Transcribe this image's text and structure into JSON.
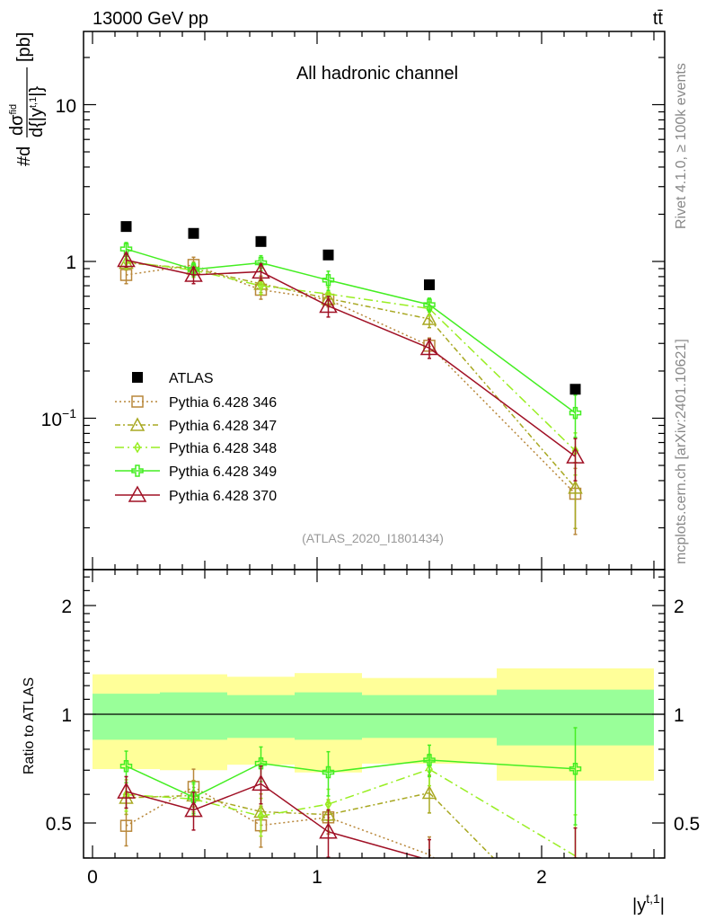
{
  "header": {
    "energy_label": "13000 GeV pp",
    "process_label": "tt̄"
  },
  "side": {
    "rivet": "Rivet 4.1.0, ≥ 100k events",
    "mcplots": "mcplots.cern.ch [arXiv:2401.10621]"
  },
  "chart_data": {
    "type": "line",
    "title": "All hadronic channel",
    "analysis_label": "(ATLAS_2020_I1801434)",
    "xlabel": {
      "base": "|y",
      "sup": "t,1",
      "suffix": "|"
    },
    "ylabel": {
      "prefix": "#d",
      "num": "dσ",
      "num_sup": "fid",
      "den": "d{|y",
      "den_sup": "t,1",
      "den_suffix": "|}",
      "suffix": "[pb]"
    },
    "ratio_ylabel": "Ratio to ATLAS",
    "yscale": "log",
    "xlim": [
      -0.04,
      2.55
    ],
    "ylim": [
      0.011,
      29
    ],
    "ratio_ylim": [
      0.4,
      2.47
    ],
    "x_ticks": [
      "0",
      "1",
      "2"
    ],
    "y_ticks": [
      {
        "base": "10"
      },
      {
        "base": "1"
      },
      {
        "base": "10",
        "exp": "−1"
      }
    ],
    "ratio_y_ticks": [
      "2",
      "1",
      "0.5"
    ],
    "x_edges": [
      0,
      0.3,
      0.6,
      0.9,
      1.2,
      1.8,
      2.5
    ],
    "x": [
      0.15,
      0.45,
      0.75,
      1.05,
      1.5,
      2.15
    ],
    "reference": {
      "name": "ATLAS",
      "color": "#000000",
      "values": [
        1.67,
        1.51,
        1.34,
        1.1,
        0.71,
        0.153
      ],
      "band_total": [
        [
          0.705,
          1.29
        ],
        [
          0.7,
          1.29
        ],
        [
          0.725,
          1.27
        ],
        [
          0.69,
          1.3
        ],
        [
          0.73,
          1.26
        ],
        [
          0.655,
          1.34
        ]
      ],
      "band_stat": [
        [
          0.85,
          1.14
        ],
        [
          0.85,
          1.15
        ],
        [
          0.86,
          1.13
        ],
        [
          0.85,
          1.15
        ],
        [
          0.86,
          1.13
        ],
        [
          0.82,
          1.17
        ]
      ],
      "band_total_color": "#ffff99",
      "band_stat_color": "#99ff99"
    },
    "series": [
      {
        "name": "Pythia 6.428 346",
        "color": "#b8873a",
        "dash": "dotted",
        "marker": "square",
        "values": [
          0.82,
          0.95,
          0.66,
          0.57,
          0.29,
          0.033
        ],
        "rel_err": [
          0.12,
          0.12,
          0.13,
          0.1,
          0.12,
          0.45
        ]
      },
      {
        "name": "Pythia 6.428 347",
        "color": "#a8a822",
        "dash": "dash-dot",
        "marker": "triangle",
        "values": [
          0.98,
          0.9,
          0.72,
          0.58,
          0.43,
          0.036
        ],
        "rel_err": [
          0.1,
          0.1,
          0.12,
          0.1,
          0.12,
          0.45
        ]
      },
      {
        "name": "Pythia 6.428 348",
        "color": "#99ee22",
        "dash": "long-dash-dot",
        "marker": "diamond",
        "values": [
          1.0,
          0.88,
          0.7,
          0.62,
          0.5,
          0.062
        ],
        "rel_err": [
          0.1,
          0.1,
          0.12,
          0.1,
          0.1,
          0.3
        ]
      },
      {
        "name": "Pythia 6.428 349",
        "color": "#44ee22",
        "dash": "solid",
        "marker": "cross",
        "values": [
          1.2,
          0.89,
          0.98,
          0.76,
          0.53,
          0.108
        ],
        "rel_err": [
          0.1,
          0.1,
          0.11,
          0.14,
          0.1,
          0.3
        ]
      },
      {
        "name": "Pythia 6.428 370",
        "color": "#a01025",
        "dash": "solid",
        "marker": "triangle-large",
        "values": [
          1.02,
          0.82,
          0.86,
          0.52,
          0.28,
          0.057
        ],
        "rel_err": [
          0.1,
          0.12,
          0.12,
          0.15,
          0.14,
          0.3
        ]
      }
    ]
  }
}
